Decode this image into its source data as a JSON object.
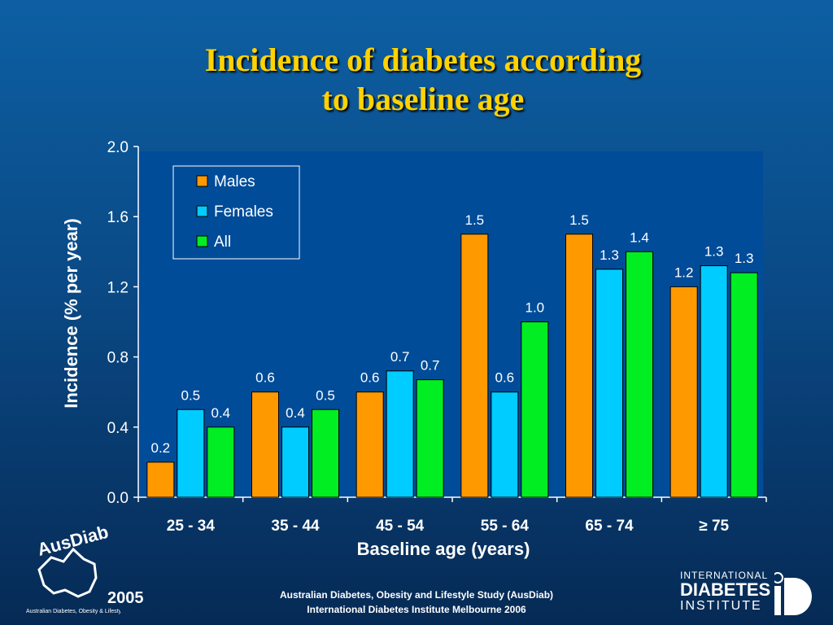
{
  "slide": {
    "title_line1": "Incidence of diabetes according",
    "title_line2": "to baseline age",
    "year": "2005",
    "footer_line1": "Australian Diabetes, Obesity and Lifestyle Study (AusDiab)",
    "footer_line2": "International Diabetes Institute Melbourne 2006",
    "logo_left_text": "AusDiab",
    "logo_left_subtext": "Australian Diabetes, Obesity & Lifestyle Study",
    "logo_right_line1": "INTERNATIONAL",
    "logo_right_line2": "DIABETES",
    "logo_right_line3": "INSTITUTE"
  },
  "colors": {
    "Males": "#ff9900",
    "Females": "#00ccff",
    "All": "#00ee22",
    "plot_bg": "#004c99",
    "title": "#ffd200"
  },
  "chart_data": {
    "type": "bar",
    "title": "Incidence of diabetes according to baseline age",
    "xlabel": "Baseline age (years)",
    "ylabel": "Incidence (% per year)",
    "ylim": [
      0,
      2.0
    ],
    "yticks": [
      "0.0",
      "0.4",
      "0.8",
      "1.2",
      "1.6",
      "2.0"
    ],
    "categories": [
      "25 - 34",
      "35 - 44",
      "45 - 54",
      "55 - 64",
      "65 - 74",
      "≥ 75"
    ],
    "series": [
      {
        "name": "Males",
        "values": [
          0.2,
          0.6,
          0.6,
          1.5,
          1.5,
          1.2
        ],
        "labels": [
          "0.2",
          "0.6",
          "0.6",
          "1.5",
          "1.5",
          "1.2"
        ]
      },
      {
        "name": "Females",
        "values": [
          0.5,
          0.4,
          0.72,
          0.6,
          1.3,
          1.32
        ],
        "labels": [
          "0.5",
          "0.4",
          "0.7",
          "0.6",
          "1.3",
          "1.3"
        ]
      },
      {
        "name": "All",
        "values": [
          0.4,
          0.5,
          0.67,
          1.0,
          1.4,
          1.28
        ],
        "labels": [
          "0.4",
          "0.5",
          "0.7",
          "1.0",
          "1.4",
          "1.3"
        ]
      }
    ],
    "legend": "top-left",
    "grid": false
  }
}
